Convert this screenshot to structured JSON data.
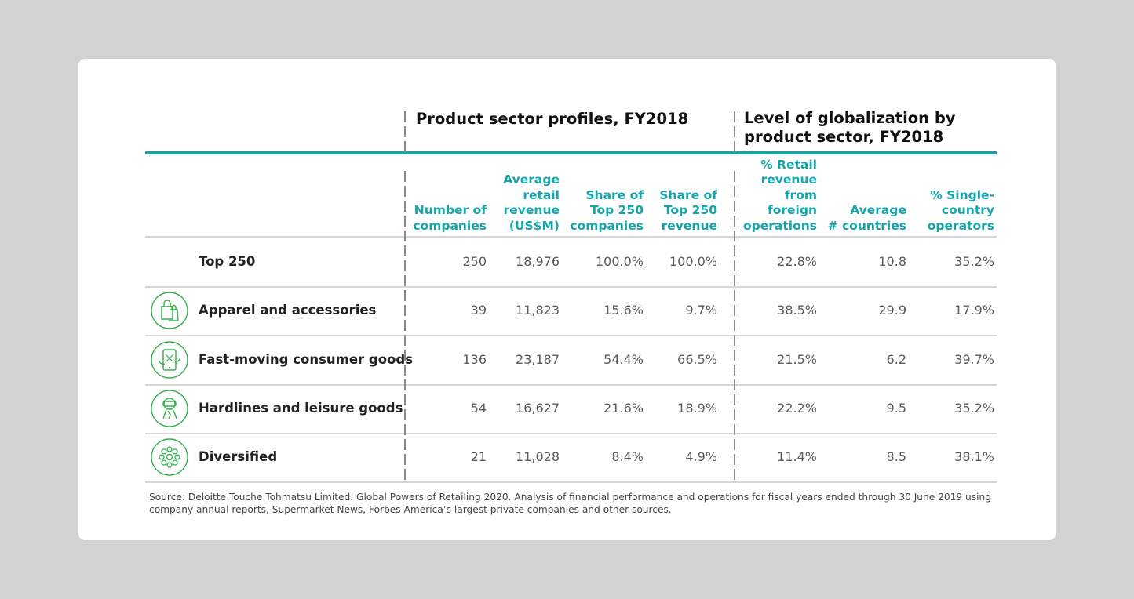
{
  "groups": {
    "profiles_title": "Product sector profiles, FY2018",
    "globalization_title_line1": "Level of globalization by",
    "globalization_title_line2": "product sector, FY2018"
  },
  "columns": [
    {
      "lines": [
        "Number of",
        "companies"
      ]
    },
    {
      "lines": [
        "Average",
        "retail",
        "revenue",
        "(US$M)"
      ]
    },
    {
      "lines": [
        "Share of",
        "Top 250",
        "companies"
      ]
    },
    {
      "lines": [
        "Share of",
        "Top 250",
        "revenue"
      ]
    },
    {
      "lines": [
        "% Retail",
        "revenue",
        "from",
        "foreign",
        "operations"
      ]
    },
    {
      "lines": [
        "Average",
        "# countries"
      ]
    },
    {
      "lines": [
        "% Single-",
        "country",
        "operators"
      ]
    }
  ],
  "rows": [
    {
      "label": "Top 250",
      "icon": "",
      "cells": [
        "250",
        "18,976",
        "100.0%",
        "100.0%",
        "22.8%",
        "10.8",
        "35.2%"
      ]
    },
    {
      "label": "Apparel and accessories",
      "icon": "shopping-bags-icon",
      "cells": [
        "39",
        "11,823",
        "15.6%",
        "9.7%",
        "38.5%",
        "29.9",
        "17.9%"
      ]
    },
    {
      "label": "Fast-moving consumer goods",
      "icon": "mobile-shopping-icon",
      "cells": [
        "136",
        "23,187",
        "54.4%",
        "66.5%",
        "21.5%",
        "6.2",
        "39.7%"
      ]
    },
    {
      "label": "Hardlines and leisure goods",
      "icon": "vr-headset-icon",
      "cells": [
        "54",
        "16,627",
        "21.6%",
        "18.9%",
        "22.2%",
        "9.5",
        "35.2%"
      ]
    },
    {
      "label": "Diversified",
      "icon": "network-nodes-icon",
      "cells": [
        "21",
        "11,028",
        "8.4%",
        "4.9%",
        "11.4%",
        "8.5",
        "38.1%"
      ]
    }
  ],
  "source": "Source: Deloitte Touche Tohmatsu Limited. Global Powers of Retailing 2020. Analysis of financial performance and operations for fiscal years ended through 30 June 2019 using company annual reports, Supermarket News, Forbes America’s largest private companies and other sources.",
  "colors": {
    "accent": "#14a5ab",
    "icon": "#2fb24c",
    "rule": "#d6d6d6"
  },
  "chart_data": {
    "type": "table",
    "title": "",
    "column_groups": [
      {
        "name": "Product sector profiles, FY2018",
        "columns": [
          "Number of companies",
          "Average retail revenue (US$M)",
          "Share of Top 250 companies",
          "Share of Top 250 revenue"
        ]
      },
      {
        "name": "Level of globalization by product sector, FY2018",
        "columns": [
          "% Retail revenue from foreign operations",
          "Average # countries",
          "% Single-country operators"
        ]
      }
    ],
    "row_labels": [
      "Top 250",
      "Apparel and accessories",
      "Fast-moving consumer goods",
      "Hardlines and leisure goods",
      "Diversified"
    ],
    "values": [
      [
        250,
        18976,
        100.0,
        100.0,
        22.8,
        10.8,
        35.2
      ],
      [
        39,
        11823,
        15.6,
        9.7,
        38.5,
        29.9,
        17.9
      ],
      [
        136,
        23187,
        54.4,
        66.5,
        21.5,
        6.2,
        39.7
      ],
      [
        54,
        16627,
        21.6,
        18.9,
        22.2,
        9.5,
        35.2
      ],
      [
        21,
        11028,
        8.4,
        4.9,
        11.4,
        8.5,
        38.1
      ]
    ]
  }
}
